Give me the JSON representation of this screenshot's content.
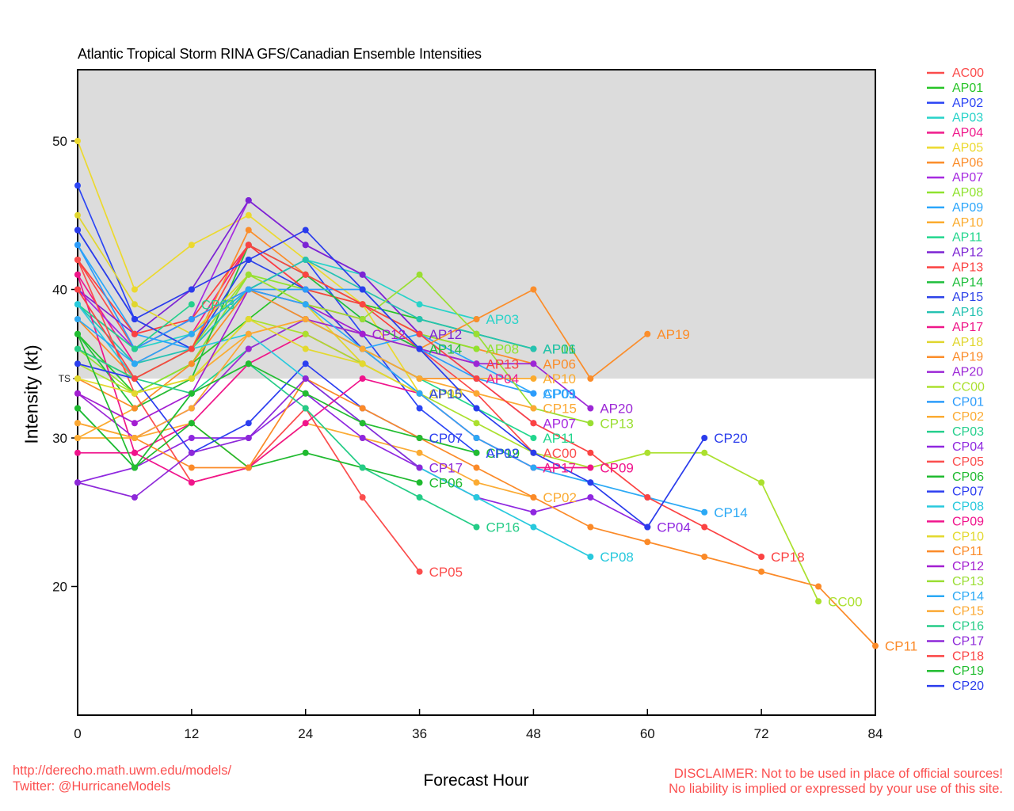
{
  "title": "Atlantic Tropical Storm RINA GFS/Canadian Ensemble Intensities",
  "y_axis_label": "Intensity (kt)",
  "x_axis_label": "Forecast Hour",
  "footer": {
    "url": "http://derecho.math.uwm.edu/models/",
    "twitter": "Twitter: @HurricaneModels",
    "disclaimer_line1": "DISCLAIMER: Not to be used in place of official sources!",
    "disclaimer_line2": "No liability is implied or expressed by your use of this site.",
    "text_color": "#fb5050"
  },
  "chart_data": {
    "type": "line",
    "title": "Atlantic Tropical Storm RINA GFS/Canadian Ensemble Intensities",
    "xlabel": "Forecast Hour",
    "ylabel": "Intensity (kt)",
    "x_step_hours": 6,
    "xlim": [
      0,
      84
    ],
    "ylim": [
      11,
      55
    ],
    "xticks": [
      0,
      12,
      24,
      36,
      48,
      60,
      72,
      84
    ],
    "yticks": [
      20,
      30,
      40,
      50
    ],
    "ts_threshold": {
      "label": "TS",
      "value": 34
    },
    "shaded_region": {
      "from_value": 34,
      "to_top": true,
      "color": "#dcdcdc"
    },
    "legend_position": "right",
    "grid": false,
    "series": [
      {
        "name": "AC00",
        "color": "#fb4b4b",
        "values": [
          42,
          36,
          38,
          40,
          39,
          38,
          36,
          33,
          29
        ]
      },
      {
        "name": "AP01",
        "color": "#27c427",
        "values": [
          37,
          33,
          35,
          38,
          41,
          39,
          38,
          37,
          36
        ]
      },
      {
        "name": "AP02",
        "color": "#2c46f5",
        "lp": 1,
        "values": [
          47,
          38,
          36,
          40,
          42,
          37,
          32,
          29
        ]
      },
      {
        "name": "AP03",
        "color": "#28d3c9",
        "values": [
          39,
          36,
          37,
          40,
          42,
          41,
          39,
          38
        ]
      },
      {
        "name": "AP04",
        "color": "#f01a8c",
        "values": [
          41,
          35,
          37,
          43,
          40,
          36,
          34,
          34
        ]
      },
      {
        "name": "AP05",
        "color": "#ecd92e",
        "values": [
          50,
          40,
          43,
          45,
          42,
          39,
          33
        ]
      },
      {
        "name": "AP06",
        "color": "#fb8d2a",
        "values": [
          38,
          34,
          36,
          44,
          41,
          39,
          37,
          36,
          35
        ]
      },
      {
        "name": "AP07",
        "color": "#a62ae0",
        "values": [
          40,
          36,
          38,
          46,
          43,
          41,
          37,
          34,
          31
        ]
      },
      {
        "name": "AP08",
        "color": "#8fe32e",
        "values": [
          36,
          33,
          35,
          41,
          40,
          39,
          37,
          36
        ]
      },
      {
        "name": "AP09",
        "color": "#2ba6fb",
        "lp": 1,
        "values": [
          43,
          37,
          36,
          40,
          38,
          36,
          37,
          35,
          33
        ]
      },
      {
        "name": "AP10",
        "color": "#fbab2e",
        "values": [
          30,
          32,
          34,
          37,
          38,
          36,
          34,
          34,
          34
        ]
      },
      {
        "name": "AP11",
        "color": "#22d68d",
        "values": [
          32,
          28,
          33,
          36,
          38,
          36,
          34,
          32,
          30
        ]
      },
      {
        "name": "AP12",
        "color": "#7c24d4",
        "values": [
          40,
          37,
          40,
          46,
          43,
          41,
          37
        ]
      },
      {
        "name": "AP13",
        "color": "#fb4040",
        "values": [
          42,
          37,
          38,
          43,
          40,
          39,
          36,
          35
        ]
      },
      {
        "name": "AP14",
        "color": "#1fbf3c",
        "values": [
          37,
          32,
          34,
          43,
          41,
          38,
          36
        ]
      },
      {
        "name": "AP15",
        "color": "#2c43e8",
        "lp": 1,
        "values": [
          44,
          38,
          36,
          42,
          40,
          36,
          33
        ]
      },
      {
        "name": "AP16",
        "color": "#25c2b2",
        "lp": 1,
        "values": [
          39,
          35,
          36,
          40,
          42,
          40,
          38,
          37,
          36
        ]
      },
      {
        "name": "AP17",
        "color": "#ef1689",
        "values": [
          41,
          29,
          31,
          35,
          37,
          35,
          33,
          30,
          28
        ]
      },
      {
        "name": "AP18",
        "color": "#e0d62e",
        "values": [
          45,
          39,
          37,
          41,
          39,
          35,
          33
        ]
      },
      {
        "name": "AP19",
        "color": "#fb8d2a",
        "values": [
          34,
          32,
          35,
          40,
          38,
          37,
          36,
          38,
          40,
          34,
          37
        ]
      },
      {
        "name": "AP20",
        "color": "#9c27d6",
        "values": [
          33,
          30,
          32,
          36,
          38,
          37,
          36,
          35,
          35,
          32
        ]
      },
      {
        "name": "CC00",
        "color": "#abe02e",
        "values": [
          35,
          33,
          34,
          38,
          37,
          35,
          33,
          31,
          29,
          28,
          29,
          29,
          27,
          19
        ]
      },
      {
        "name": "CP01",
        "color": "#2b9cfb",
        "values": [
          43,
          36,
          38,
          40,
          40,
          40,
          36,
          34,
          33
        ]
      },
      {
        "name": "CP02",
        "color": "#fbab33",
        "values": [
          30,
          30,
          31,
          28,
          31,
          30,
          29,
          27,
          26
        ]
      },
      {
        "name": "CP03",
        "color": "#25cf8d",
        "values": [
          39,
          36,
          39
        ]
      },
      {
        "name": "CP04",
        "color": "#8f27e0",
        "values": [
          27,
          28,
          30,
          30,
          33,
          30,
          28,
          26,
          25,
          26,
          24
        ]
      },
      {
        "name": "CP05",
        "color": "#fb4d4d",
        "values": [
          42,
          33,
          27,
          28,
          32,
          26,
          21
        ]
      },
      {
        "name": "CP06",
        "color": "#1fba2f",
        "values": [
          32,
          28,
          31,
          28,
          29,
          28,
          27
        ]
      },
      {
        "name": "CP07",
        "color": "#2c3ef0",
        "lp": 1,
        "values": [
          35,
          34,
          29,
          31,
          35,
          32,
          30
        ]
      },
      {
        "name": "CP08",
        "color": "#28c9dd",
        "values": [
          39,
          34,
          36,
          37,
          34,
          31,
          28,
          26,
          24,
          22
        ]
      },
      {
        "name": "CP09",
        "color": "#f0148c",
        "values": [
          29,
          29,
          27,
          28,
          31,
          34,
          33,
          30,
          28,
          28
        ]
      },
      {
        "name": "CP10",
        "color": "#e3d92e",
        "values": [
          34,
          33,
          34,
          38,
          36,
          35,
          33
        ]
      },
      {
        "name": "CP11",
        "color": "#fb8a28",
        "values": [
          31,
          30,
          28,
          28,
          34,
          32,
          30,
          28,
          26,
          24,
          23,
          22,
          21,
          20,
          16
        ]
      },
      {
        "name": "CP12",
        "color": "#a31ed1",
        "values": [
          33,
          31,
          33,
          40,
          39,
          37
        ]
      },
      {
        "name": "CP13",
        "color": "#9ade32",
        "values": [
          36,
          34,
          36,
          41,
          39,
          38,
          41,
          37,
          32,
          31
        ]
      },
      {
        "name": "CP14",
        "color": "#2ba9f5",
        "values": [
          38,
          35,
          37,
          40,
          39,
          36,
          33,
          30,
          28,
          27,
          26,
          25
        ]
      },
      {
        "name": "CP15",
        "color": "#fba833",
        "values": [
          31,
          30,
          32,
          37,
          38,
          36,
          34,
          33,
          32
        ]
      },
      {
        "name": "CP16",
        "color": "#25cc87",
        "values": [
          36,
          34,
          33,
          35,
          32,
          28,
          26,
          24
        ]
      },
      {
        "name": "CP17",
        "color": "#8d28d9",
        "values": [
          27,
          26,
          29,
          30,
          34,
          31,
          28
        ]
      },
      {
        "name": "CP18",
        "color": "#fb4343",
        "values": [
          40,
          34,
          36,
          43,
          41,
          39,
          37,
          34,
          31,
          29,
          26,
          24,
          22
        ]
      },
      {
        "name": "CP19",
        "color": "#22bd31",
        "values": [
          37,
          28,
          33,
          35,
          33,
          31,
          30,
          29
        ]
      },
      {
        "name": "CP20",
        "color": "#2a3cec",
        "lp": 1,
        "values": [
          44,
          38,
          40,
          42,
          44,
          40,
          36,
          32,
          29,
          27,
          24,
          30
        ]
      }
    ]
  }
}
